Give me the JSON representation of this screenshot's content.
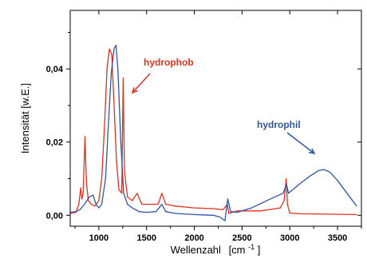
{
  "chart_data": {
    "type": "line",
    "xlabel": "Wellenzahl",
    "xlabel_unit": "[cm",
    "xlabel_unit_sup": "-1",
    "xlabel_unit_close": "]",
    "ylabel": "Intensität [w.E.]",
    "xlim": [
      700,
      3750
    ],
    "ylim": [
      -0.003,
      0.056
    ],
    "x_ticks": [
      1000,
      1500,
      2000,
      2500,
      3000,
      3500
    ],
    "x_tick_labels": [
      "1000",
      "1500",
      "2000",
      "2500",
      "3000",
      "3500"
    ],
    "y_ticks": [
      0.0,
      0.02,
      0.04
    ],
    "y_tick_labels": [
      "0,00",
      "0,02",
      "0,04"
    ],
    "grid": false,
    "legend": "none",
    "series": [
      {
        "color": "#e0301e",
        "annotation": "hydrophob",
        "points": [
          [
            700,
            0.0005
          ],
          [
            760,
            0.0008
          ],
          [
            790,
            0.003
          ],
          [
            810,
            0.0075
          ],
          [
            822,
            0.0045
          ],
          [
            835,
            0.006
          ],
          [
            855,
            0.0215
          ],
          [
            870,
            0.009
          ],
          [
            890,
            0.004
          ],
          [
            920,
            0.003
          ],
          [
            960,
            0.0025
          ],
          [
            1000,
            0.004
          ],
          [
            1030,
            0.01
          ],
          [
            1060,
            0.025
          ],
          [
            1085,
            0.04
          ],
          [
            1110,
            0.0455
          ],
          [
            1135,
            0.044
          ],
          [
            1160,
            0.03
          ],
          [
            1185,
            0.015
          ],
          [
            1210,
            0.007
          ],
          [
            1240,
            0.006
          ],
          [
            1255,
            0.0375
          ],
          [
            1268,
            0.012
          ],
          [
            1300,
            0.005
          ],
          [
            1350,
            0.004
          ],
          [
            1400,
            0.006
          ],
          [
            1450,
            0.003
          ],
          [
            1550,
            0.003
          ],
          [
            1620,
            0.003
          ],
          [
            1660,
            0.006
          ],
          [
            1700,
            0.003
          ],
          [
            1800,
            0.0025
          ],
          [
            2000,
            0.002
          ],
          [
            2200,
            0.0018
          ],
          [
            2300,
            0.0015
          ],
          [
            2345,
            0.003
          ],
          [
            2360,
            0.0005
          ],
          [
            2450,
            0.0012
          ],
          [
            2700,
            0.0012
          ],
          [
            2900,
            0.002
          ],
          [
            2940,
            0.004
          ],
          [
            2962,
            0.01
          ],
          [
            2975,
            0.003
          ],
          [
            3000,
            0.0006
          ],
          [
            3100,
            0.0004
          ],
          [
            3400,
            0.0003
          ],
          [
            3700,
            0.0002
          ]
        ]
      },
      {
        "color": "#2f55a4",
        "annotation": "hydrophil",
        "points": [
          [
            700,
            0.0008
          ],
          [
            760,
            0.001
          ],
          [
            800,
            0.0015
          ],
          [
            850,
            0.003
          ],
          [
            900,
            0.005
          ],
          [
            940,
            0.0055
          ],
          [
            970,
            0.003
          ],
          [
            1000,
            0.002
          ],
          [
            1030,
            0.003
          ],
          [
            1070,
            0.01
          ],
          [
            1100,
            0.025
          ],
          [
            1130,
            0.039
          ],
          [
            1160,
            0.0455
          ],
          [
            1180,
            0.0465
          ],
          [
            1200,
            0.04
          ],
          [
            1230,
            0.02
          ],
          [
            1260,
            0.006
          ],
          [
            1300,
            0.003
          ],
          [
            1350,
            0.002
          ],
          [
            1420,
            0.001
          ],
          [
            1500,
            0.0008
          ],
          [
            1600,
            0.001
          ],
          [
            1660,
            0.003
          ],
          [
            1700,
            0.001
          ],
          [
            1800,
            0.0005
          ],
          [
            2000,
            0.0002
          ],
          [
            2200,
            0.0
          ],
          [
            2270,
            -0.0005
          ],
          [
            2320,
            -0.0015
          ],
          [
            2350,
            0.0045
          ],
          [
            2380,
            0.001
          ],
          [
            2450,
            0.0008
          ],
          [
            2600,
            0.002
          ],
          [
            2800,
            0.0045
          ],
          [
            2930,
            0.006
          ],
          [
            2965,
            0.0085
          ],
          [
            2985,
            0.006
          ],
          [
            3100,
            0.0085
          ],
          [
            3200,
            0.0105
          ],
          [
            3300,
            0.0122
          ],
          [
            3360,
            0.0125
          ],
          [
            3420,
            0.0118
          ],
          [
            3500,
            0.0095
          ],
          [
            3600,
            0.006
          ],
          [
            3700,
            0.0025
          ]
        ]
      }
    ]
  }
}
